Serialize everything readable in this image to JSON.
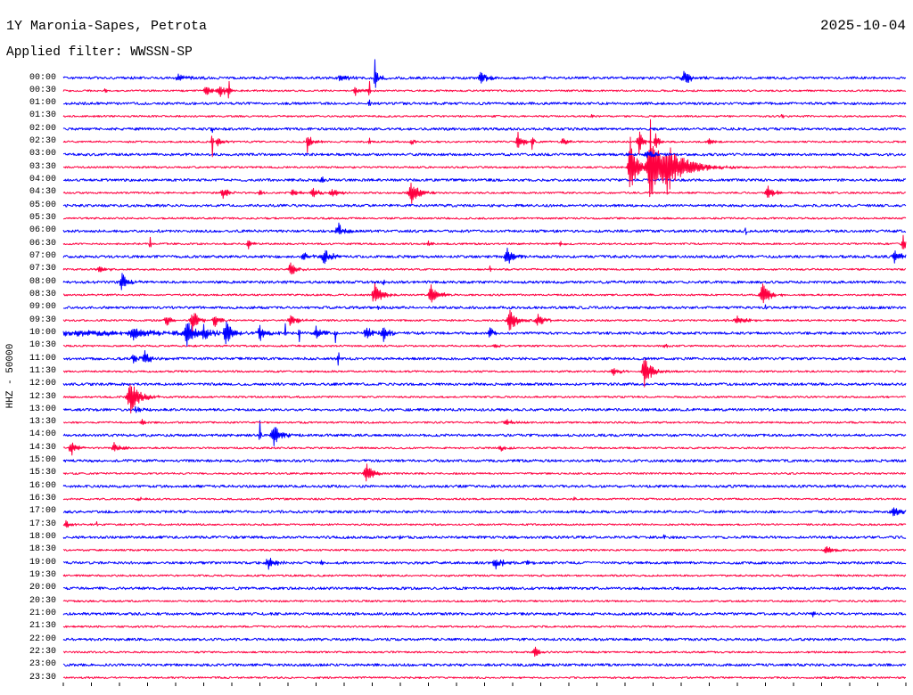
{
  "header": {
    "date": "2025-10-04",
    "filter": "Applied filter: WWSSN-SP"
  },
  "colors": {
    "background": "#ffffff",
    "text": "#000000",
    "trace_blue": "#0000ff",
    "trace_red": "#ff0040"
  },
  "chart_data": {
    "type": "line",
    "title": "1Y Maronia-Sapes, Petrota",
    "ylabel": "HHZ - 50000",
    "trace_scale_counts": 50000,
    "x_range_minutes": [
      0,
      30
    ],
    "grid": false,
    "series": [
      {
        "name": "00:00",
        "color": "#0000ff",
        "noise": 5000,
        "events": [
          {
            "t": 4.1,
            "amp": 14000,
            "dur": 0.8
          },
          {
            "t": 9.9,
            "amp": 12000,
            "dur": 0.6
          },
          {
            "t": 11.1,
            "amp": 70000,
            "dur": 0.06
          },
          {
            "t": 11.2,
            "amp": 14000,
            "dur": 0.6
          },
          {
            "t": 14.9,
            "amp": 21000,
            "dur": 0.7
          },
          {
            "t": 22.1,
            "amp": 28000,
            "dur": 0.6
          }
        ]
      },
      {
        "name": "00:30",
        "color": "#ff0040",
        "noise": 3500,
        "events": [
          {
            "t": 1.5,
            "amp": 10000,
            "dur": 0.4
          },
          {
            "t": 5.1,
            "amp": 14000,
            "dur": 0.8
          },
          {
            "t": 5.6,
            "amp": 21000,
            "dur": 0.5
          },
          {
            "t": 5.9,
            "amp": 35000,
            "dur": 0.06
          },
          {
            "t": 10.4,
            "amp": 17000,
            "dur": 0.5
          },
          {
            "t": 10.9,
            "amp": 42000,
            "dur": 0.06
          }
        ]
      },
      {
        "name": "01:00",
        "color": "#0000ff",
        "noise": 5000,
        "events": [
          {
            "t": 10.9,
            "amp": 17000,
            "dur": 0.06
          }
        ]
      },
      {
        "name": "01:30",
        "color": "#ff0040",
        "noise": 3500,
        "events": [
          {
            "t": 18.8,
            "amp": 8000,
            "dur": 0.2
          },
          {
            "t": 25.6,
            "amp": 7000,
            "dur": 0.2
          }
        ]
      },
      {
        "name": "02:00",
        "color": "#0000ff",
        "noise": 5000,
        "events": [
          {
            "t": 5.3,
            "amp": 28000,
            "dur": 0.05
          }
        ]
      },
      {
        "name": "02:30",
        "color": "#ff0040",
        "noise": 3500,
        "events": [
          {
            "t": 5.3,
            "amp": 87000,
            "dur": 0.06
          },
          {
            "t": 5.5,
            "amp": 14000,
            "dur": 0.5
          },
          {
            "t": 8.7,
            "amp": 42000,
            "dur": 0.08
          },
          {
            "t": 8.8,
            "amp": 14000,
            "dur": 0.5
          },
          {
            "t": 10.9,
            "amp": 17000,
            "dur": 0.08
          },
          {
            "t": 12.4,
            "amp": 14000,
            "dur": 0.3
          },
          {
            "t": 16.2,
            "amp": 35000,
            "dur": 0.4
          },
          {
            "t": 16.7,
            "amp": 28000,
            "dur": 0.1
          },
          {
            "t": 17.8,
            "amp": 14000,
            "dur": 0.4
          },
          {
            "t": 20.5,
            "amp": 49000,
            "dur": 0.3
          },
          {
            "t": 21.1,
            "amp": 35000,
            "dur": 0.3
          },
          {
            "t": 23.0,
            "amp": 14000,
            "dur": 0.4
          }
        ]
      },
      {
        "name": "03:00",
        "color": "#0000ff",
        "noise": 5000,
        "events": [
          {
            "t": 20.8,
            "amp": 14000,
            "dur": 0.6
          }
        ]
      },
      {
        "name": "03:30",
        "color": "#ff0040",
        "noise": 3500,
        "events": [
          {
            "t": 20.2,
            "amp": 120000,
            "dur": 0.5
          },
          {
            "t": 20.9,
            "amp": 185000,
            "dur": 0.6
          },
          {
            "t": 21.5,
            "amp": 90000,
            "dur": 1.6
          }
        ]
      },
      {
        "name": "04:00",
        "color": "#0000ff",
        "noise": 5000,
        "events": [
          {
            "t": 9.2,
            "amp": 10000,
            "dur": 0.4
          }
        ]
      },
      {
        "name": "04:30",
        "color": "#ff0040",
        "noise": 3500,
        "events": [
          {
            "t": 5.7,
            "amp": 21000,
            "dur": 0.5
          },
          {
            "t": 7.0,
            "amp": 8000,
            "dur": 0.5
          },
          {
            "t": 8.2,
            "amp": 14000,
            "dur": 0.6
          },
          {
            "t": 8.9,
            "amp": 17000,
            "dur": 0.6
          },
          {
            "t": 9.6,
            "amp": 14000,
            "dur": 0.6
          },
          {
            "t": 12.4,
            "amp": 42000,
            "dur": 0.7
          },
          {
            "t": 25.1,
            "amp": 24000,
            "dur": 0.7
          }
        ]
      },
      {
        "name": "05:00",
        "color": "#0000ff",
        "noise": 5000,
        "events": []
      },
      {
        "name": "05:30",
        "color": "#ff0040",
        "noise": 3500,
        "events": []
      },
      {
        "name": "06:00",
        "color": "#0000ff",
        "noise": 5000,
        "events": [
          {
            "t": 9.8,
            "amp": 28000,
            "dur": 0.6
          },
          {
            "t": 24.3,
            "amp": 17000,
            "dur": 0.04
          }
        ]
      },
      {
        "name": "06:30",
        "color": "#ff0040",
        "noise": 3500,
        "events": [
          {
            "t": 3.1,
            "amp": 28000,
            "dur": 0.06
          },
          {
            "t": 6.6,
            "amp": 17000,
            "dur": 0.3
          },
          {
            "t": 13.0,
            "amp": 10000,
            "dur": 0.3
          },
          {
            "t": 17.7,
            "amp": 10000,
            "dur": 0.3
          },
          {
            "t": 29.9,
            "amp": 35000,
            "dur": 0.2
          }
        ]
      },
      {
        "name": "07:00",
        "color": "#0000ff",
        "noise": 5000,
        "events": [
          {
            "t": 8.6,
            "amp": 14000,
            "dur": 0.7
          },
          {
            "t": 9.3,
            "amp": 31000,
            "dur": 0.6
          },
          {
            "t": 15.8,
            "amp": 38000,
            "dur": 0.6
          },
          {
            "t": 29.6,
            "amp": 28000,
            "dur": 0.5
          }
        ]
      },
      {
        "name": "07:30",
        "color": "#ff0040",
        "noise": 3500,
        "events": [
          {
            "t": 1.3,
            "amp": 10000,
            "dur": 0.8
          },
          {
            "t": 8.1,
            "amp": 28000,
            "dur": 0.5
          },
          {
            "t": 15.2,
            "amp": 14000,
            "dur": 0.05
          }
        ]
      },
      {
        "name": "08:00",
        "color": "#0000ff",
        "noise": 5000,
        "events": [
          {
            "t": 2.1,
            "amp": 31000,
            "dur": 0.6
          },
          {
            "t": 11.4,
            "amp": 8000,
            "dur": 0.3
          }
        ]
      },
      {
        "name": "08:30",
        "color": "#ff0040",
        "noise": 3500,
        "events": [
          {
            "t": 11.1,
            "amp": 45000,
            "dur": 0.6
          },
          {
            "t": 13.1,
            "amp": 38000,
            "dur": 0.6
          },
          {
            "t": 24.9,
            "amp": 42000,
            "dur": 0.7
          }
        ]
      },
      {
        "name": "09:00",
        "color": "#0000ff",
        "noise": 5000,
        "events": [
          {
            "t": 11.2,
            "amp": 10000,
            "dur": 0.05
          },
          {
            "t": 25.0,
            "amp": 10000,
            "dur": 0.05
          }
        ]
      },
      {
        "name": "09:30",
        "color": "#ff0040",
        "noise": 3500,
        "events": [
          {
            "t": 3.7,
            "amp": 17000,
            "dur": 0.6
          },
          {
            "t": 4.6,
            "amp": 42000,
            "dur": 0.5
          },
          {
            "t": 5.4,
            "amp": 21000,
            "dur": 0.5
          },
          {
            "t": 8.1,
            "amp": 21000,
            "dur": 0.7
          },
          {
            "t": 15.9,
            "amp": 42000,
            "dur": 0.6
          },
          {
            "t": 16.9,
            "amp": 21000,
            "dur": 0.6
          },
          {
            "t": 24.0,
            "amp": 17000,
            "dur": 0.7
          }
        ]
      },
      {
        "name": "10:00",
        "color": "#0000ff",
        "noise": 5000,
        "events": [
          {
            "t": 0.4,
            "amp": 10000,
            "dur": 12
          },
          {
            "t": 2.5,
            "amp": 17000,
            "dur": 0.8
          },
          {
            "t": 4.4,
            "amp": 52000,
            "dur": 0.5
          },
          {
            "t": 5.0,
            "amp": 24000,
            "dur": 0.5
          },
          {
            "t": 5.8,
            "amp": 42000,
            "dur": 0.5
          },
          {
            "t": 7.0,
            "amp": 28000,
            "dur": 0.4
          },
          {
            "t": 7.9,
            "amp": 42000,
            "dur": 0.06
          },
          {
            "t": 8.4,
            "amp": 35000,
            "dur": 0.06
          },
          {
            "t": 9.0,
            "amp": 24000,
            "dur": 0.5
          },
          {
            "t": 9.7,
            "amp": 35000,
            "dur": 0.06
          },
          {
            "t": 10.8,
            "amp": 24000,
            "dur": 0.5
          },
          {
            "t": 11.4,
            "amp": 28000,
            "dur": 0.4
          },
          {
            "t": 15.2,
            "amp": 21000,
            "dur": 0.3
          }
        ]
      },
      {
        "name": "10:30",
        "color": "#ff0040",
        "noise": 3500,
        "events": [
          {
            "t": 15.4,
            "amp": 10000,
            "dur": 0.3
          },
          {
            "t": 21.4,
            "amp": 10000,
            "dur": 0.3
          }
        ]
      },
      {
        "name": "11:00",
        "color": "#0000ff",
        "noise": 5000,
        "events": [
          {
            "t": 2.5,
            "amp": 17000,
            "dur": 0.5
          },
          {
            "t": 2.9,
            "amp": 28000,
            "dur": 0.4
          },
          {
            "t": 9.8,
            "amp": 35000,
            "dur": 0.06
          }
        ]
      },
      {
        "name": "11:30",
        "color": "#ff0040",
        "noise": 3500,
        "events": [
          {
            "t": 19.6,
            "amp": 14000,
            "dur": 0.6
          },
          {
            "t": 20.7,
            "amp": 63000,
            "dur": 0.6
          }
        ]
      },
      {
        "name": "12:00",
        "color": "#0000ff",
        "noise": 5000,
        "events": []
      },
      {
        "name": "12:30",
        "color": "#ff0040",
        "noise": 3500,
        "events": [
          {
            "t": 2.4,
            "amp": 63000,
            "dur": 0.8
          }
        ]
      },
      {
        "name": "13:00",
        "color": "#0000ff",
        "noise": 5000,
        "events": [
          {
            "t": 2.6,
            "amp": 10000,
            "dur": 0.4
          }
        ]
      },
      {
        "name": "13:30",
        "color": "#ff0040",
        "noise": 3500,
        "events": [
          {
            "t": 2.8,
            "amp": 10000,
            "dur": 0.4
          },
          {
            "t": 15.8,
            "amp": 10000,
            "dur": 0.8
          }
        ]
      },
      {
        "name": "14:00",
        "color": "#0000ff",
        "noise": 5000,
        "events": [
          {
            "t": 7.0,
            "amp": 60000,
            "dur": 0.06
          },
          {
            "t": 7.5,
            "amp": 42000,
            "dur": 0.6
          }
        ]
      },
      {
        "name": "14:30",
        "color": "#ff0040",
        "noise": 3500,
        "events": [
          {
            "t": 0.3,
            "amp": 28000,
            "dur": 0.5
          },
          {
            "t": 1.8,
            "amp": 21000,
            "dur": 0.5
          },
          {
            "t": 15.6,
            "amp": 10000,
            "dur": 0.5
          }
        ]
      },
      {
        "name": "15:00",
        "color": "#0000ff",
        "noise": 5000,
        "events": []
      },
      {
        "name": "15:30",
        "color": "#ff0040",
        "noise": 3500,
        "events": [
          {
            "t": 10.8,
            "amp": 42000,
            "dur": 0.5
          }
        ]
      },
      {
        "name": "16:00",
        "color": "#0000ff",
        "noise": 5000,
        "events": [
          {
            "t": 27.5,
            "amp": 8000,
            "dur": 0.05
          }
        ]
      },
      {
        "name": "16:30",
        "color": "#ff0040",
        "noise": 3500,
        "events": [
          {
            "t": 2.7,
            "amp": 8000,
            "dur": 0.4
          },
          {
            "t": 18.2,
            "amp": 7000,
            "dur": 0.1
          }
        ]
      },
      {
        "name": "17:00",
        "color": "#0000ff",
        "noise": 5000,
        "events": [
          {
            "t": 29.6,
            "amp": 17000,
            "dur": 0.8
          }
        ]
      },
      {
        "name": "17:30",
        "color": "#ff0040",
        "noise": 3500,
        "events": [
          {
            "t": 0.1,
            "amp": 14000,
            "dur": 0.4
          },
          {
            "t": 1.2,
            "amp": 14000,
            "dur": 0.05
          }
        ]
      },
      {
        "name": "18:00",
        "color": "#0000ff",
        "noise": 5000,
        "events": [
          {
            "t": 12.0,
            "amp": 8000,
            "dur": 0.3
          },
          {
            "t": 21.4,
            "amp": 7000,
            "dur": 0.3
          }
        ]
      },
      {
        "name": "18:30",
        "color": "#ff0040",
        "noise": 3500,
        "events": [
          {
            "t": 27.2,
            "amp": 17000,
            "dur": 0.7
          }
        ]
      },
      {
        "name": "19:00",
        "color": "#0000ff",
        "noise": 5000,
        "events": [
          {
            "t": 7.3,
            "amp": 24000,
            "dur": 0.6
          },
          {
            "t": 9.2,
            "amp": 8000,
            "dur": 0.3
          },
          {
            "t": 15.4,
            "amp": 24000,
            "dur": 0.6
          },
          {
            "t": 16.5,
            "amp": 8000,
            "dur": 0.5
          }
        ]
      },
      {
        "name": "19:30",
        "color": "#ff0040",
        "noise": 3500,
        "events": [
          {
            "t": 11.3,
            "amp": 7000,
            "dur": 0.2
          }
        ]
      },
      {
        "name": "20:00",
        "color": "#0000ff",
        "noise": 5000,
        "events": []
      },
      {
        "name": "20:30",
        "color": "#ff0040",
        "noise": 3500,
        "events": []
      },
      {
        "name": "21:00",
        "color": "#0000ff",
        "noise": 5000,
        "events": [
          {
            "t": 26.7,
            "amp": 8000,
            "dur": 0.3
          }
        ]
      },
      {
        "name": "21:30",
        "color": "#ff0040",
        "noise": 3500,
        "events": []
      },
      {
        "name": "22:00",
        "color": "#0000ff",
        "noise": 5000,
        "events": []
      },
      {
        "name": "22:30",
        "color": "#ff0040",
        "noise": 3500,
        "events": [
          {
            "t": 16.8,
            "amp": 21000,
            "dur": 0.4
          }
        ]
      },
      {
        "name": "23:00",
        "color": "#0000ff",
        "noise": 5000,
        "events": []
      },
      {
        "name": "23:30",
        "color": "#ff0040",
        "noise": 3500,
        "events": []
      }
    ]
  }
}
